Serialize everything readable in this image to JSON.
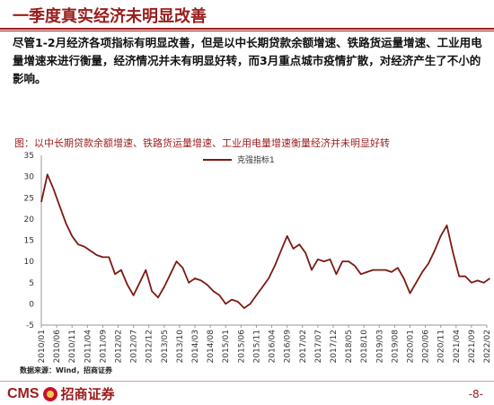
{
  "slide": {
    "title": "一季度真实经济未明显改善",
    "body": "尽管1-2月经济各项指标有明显改善，但是以中长期贷款余额增速、铁路货运量增速、工业用电量增速来进行衡量，经济情况并未有明显好转，而3月重点城市疫情扩散，对经济产生了不小的影响。",
    "source": "数据来源：Wind，招商证券",
    "page": "-8-",
    "logo_cms": "CMS",
    "logo_cn": "招商证券"
  },
  "colors": {
    "brand": "#9b1c1c",
    "line": "#7b1a12"
  },
  "chart_data": {
    "type": "line",
    "title": "图：以中长期贷款余额增速、铁路货运量增速、工业用电量增速衡量经济并未明显好转",
    "ylim": [
      -5,
      35
    ],
    "yticks": [
      -5,
      0,
      5,
      10,
      15,
      20,
      25,
      30,
      35
    ],
    "xtick_labels": [
      "2010/01",
      "2010/06",
      "2010/11",
      "2011/04",
      "2011/09",
      "2012/02",
      "2012/07",
      "2012/12",
      "2013/05",
      "2013/10",
      "2014/03",
      "2014/08",
      "2015/01",
      "2015/06",
      "2015/11",
      "2016/04",
      "2016/09",
      "2017/02",
      "2017/07",
      "2017/12",
      "2018/05",
      "2018/10",
      "2019/03",
      "2019/08",
      "2020/01",
      "2020/06",
      "2020/11",
      "2021/04",
      "2021/09",
      "2022/02"
    ],
    "legend_position": "top-center",
    "grid": false,
    "series": [
      {
        "name": "克强指标1",
        "x": [
          "2010/01",
          "2010/03",
          "2010/05",
          "2010/07",
          "2010/09",
          "2010/11",
          "2011/01",
          "2011/03",
          "2011/05",
          "2011/07",
          "2011/09",
          "2011/11",
          "2012/01",
          "2012/03",
          "2012/05",
          "2012/07",
          "2012/09",
          "2012/11",
          "2013/01",
          "2013/03",
          "2013/05",
          "2013/07",
          "2013/09",
          "2013/11",
          "2014/01",
          "2014/03",
          "2014/05",
          "2014/07",
          "2014/09",
          "2014/11",
          "2015/01",
          "2015/03",
          "2015/05",
          "2015/07",
          "2015/09",
          "2015/11",
          "2016/01",
          "2016/03",
          "2016/05",
          "2016/07",
          "2016/09",
          "2016/11",
          "2017/01",
          "2017/03",
          "2017/05",
          "2017/07",
          "2017/09",
          "2017/11",
          "2018/01",
          "2018/03",
          "2018/05",
          "2018/07",
          "2018/09",
          "2018/11",
          "2019/01",
          "2019/03",
          "2019/05",
          "2019/07",
          "2019/09",
          "2019/11",
          "2020/01",
          "2020/03",
          "2020/05",
          "2020/07",
          "2020/09",
          "2020/11",
          "2021/01",
          "2021/03",
          "2021/05",
          "2021/07",
          "2021/09",
          "2021/11",
          "2022/01",
          "2022/03"
        ],
        "values": [
          24,
          30.5,
          27,
          23,
          19,
          16,
          14,
          13.5,
          12.5,
          11.5,
          11,
          11,
          7,
          8,
          4.5,
          2,
          5,
          8,
          3,
          1.5,
          4,
          7,
          10,
          8.5,
          5,
          6,
          5.5,
          4.5,
          3,
          2,
          0,
          1,
          0.5,
          -1,
          0,
          2,
          4,
          6,
          9,
          12.5,
          16,
          13,
          14,
          12,
          8,
          10.5,
          10,
          10.5,
          7,
          10,
          10,
          9,
          7,
          7.5,
          8,
          8,
          8,
          7.5,
          8.5,
          6,
          2.5,
          5,
          7.5,
          9.5,
          12.5,
          16,
          18.5,
          12,
          6.5,
          6.5,
          5,
          5.5,
          5,
          6
        ]
      }
    ]
  }
}
